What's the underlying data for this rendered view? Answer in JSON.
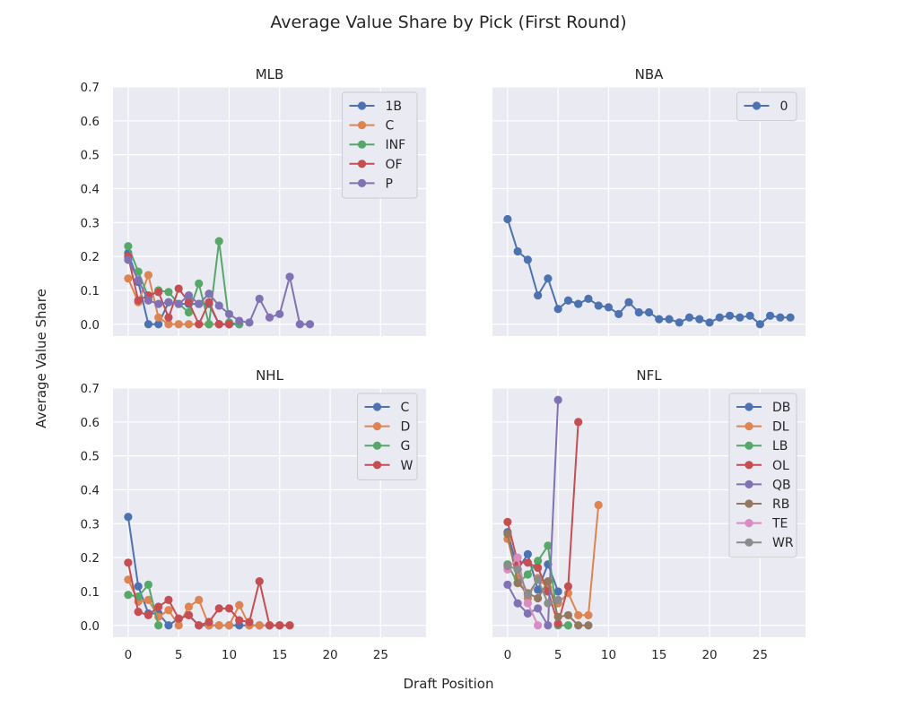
{
  "figure": {
    "title": "Average Value Share by Pick (First Round)",
    "xlabel": "Draft Position",
    "ylabel": "Average Value Share"
  },
  "palette": [
    "#4c72b0",
    "#dd8452",
    "#55a868",
    "#c44e52",
    "#8172b3",
    "#937860",
    "#da8bc3",
    "#8c8c8c"
  ],
  "chart_data": [
    {
      "type": "line",
      "title": "MLB",
      "xlim": [
        -1.5,
        29.5
      ],
      "ylim": [
        -0.035,
        0.7
      ],
      "xticks": [
        "0",
        "5",
        "10",
        "15",
        "20",
        "25"
      ],
      "yticks": [
        "0.0",
        "0.1",
        "0.2",
        "0.3",
        "0.4",
        "0.5",
        "0.6",
        "0.7"
      ],
      "grid": true,
      "legend": "top-right",
      "series": [
        {
          "name": "1B",
          "x": [
            0,
            1,
            2,
            3,
            4,
            5,
            6,
            7,
            8,
            9,
            10,
            11
          ],
          "y": [
            0.21,
            0.125,
            0.0,
            0.0,
            0.065,
            0.06,
            0.06,
            0.06,
            0.06,
            0.0,
            0.0,
            0.0
          ]
        },
        {
          "name": "C",
          "x": [
            0,
            1,
            2,
            3,
            4,
            5,
            6,
            7,
            8,
            9,
            10
          ],
          "y": [
            0.135,
            0.065,
            0.145,
            0.02,
            0.0,
            0.0,
            0.0,
            0.0,
            0.0,
            0.0,
            0.0
          ]
        },
        {
          "name": "INF",
          "x": [
            0,
            1,
            2,
            3,
            4,
            5,
            6,
            7,
            8,
            9,
            10,
            11
          ],
          "y": [
            0.23,
            0.155,
            0.08,
            0.1,
            0.095,
            0.06,
            0.035,
            0.12,
            0.0,
            0.245,
            0.005,
            0.0
          ]
        },
        {
          "name": "OF",
          "x": [
            0,
            1,
            2,
            3,
            4,
            5,
            6,
            7,
            8,
            9,
            10
          ],
          "y": [
            0.2,
            0.07,
            0.085,
            0.095,
            0.02,
            0.105,
            0.065,
            0.0,
            0.065,
            0.0,
            0.0
          ]
        },
        {
          "name": "P",
          "x": [
            0,
            1,
            2,
            3,
            4,
            5,
            6,
            7,
            8,
            9,
            10,
            11,
            12,
            13,
            14,
            15,
            16,
            17,
            18
          ],
          "y": [
            0.19,
            0.13,
            0.07,
            0.06,
            0.065,
            0.06,
            0.085,
            0.06,
            0.09,
            0.055,
            0.03,
            0.01,
            0.005,
            0.075,
            0.02,
            0.03,
            0.14,
            0.0,
            0.0
          ]
        }
      ]
    },
    {
      "type": "line",
      "title": "NBA",
      "xlim": [
        -1.5,
        29.5
      ],
      "ylim": [
        -0.035,
        0.7
      ],
      "xticks": [
        "0",
        "5",
        "10",
        "15",
        "20",
        "25"
      ],
      "yticks": [
        "0.0",
        "0.1",
        "0.2",
        "0.3",
        "0.4",
        "0.5",
        "0.6",
        "0.7"
      ],
      "grid": true,
      "legend": "top-right",
      "series": [
        {
          "name": "0",
          "x": [
            0,
            1,
            2,
            3,
            4,
            5,
            6,
            7,
            8,
            9,
            10,
            11,
            12,
            13,
            14,
            15,
            16,
            17,
            18,
            19,
            20,
            21,
            22,
            23,
            24,
            25,
            26,
            27,
            28
          ],
          "y": [
            0.31,
            0.215,
            0.19,
            0.085,
            0.135,
            0.045,
            0.07,
            0.06,
            0.075,
            0.055,
            0.05,
            0.03,
            0.065,
            0.035,
            0.035,
            0.015,
            0.015,
            0.005,
            0.02,
            0.015,
            0.005,
            0.02,
            0.025,
            0.02,
            0.025,
            0.0,
            0.025,
            0.02,
            0.02
          ]
        }
      ]
    },
    {
      "type": "line",
      "title": "NHL",
      "xlim": [
        -1.5,
        29.5
      ],
      "ylim": [
        -0.035,
        0.7
      ],
      "xticks": [
        "0",
        "5",
        "10",
        "15",
        "20",
        "25"
      ],
      "yticks": [
        "0.0",
        "0.1",
        "0.2",
        "0.3",
        "0.4",
        "0.5",
        "0.6",
        "0.7"
      ],
      "grid": true,
      "legend": "top-right",
      "series": [
        {
          "name": "C",
          "x": [
            0,
            1,
            2,
            3,
            4,
            5,
            6,
            7,
            8,
            9,
            10,
            11,
            12,
            13,
            14,
            15
          ],
          "y": [
            0.32,
            0.115,
            0.035,
            0.035,
            0.0,
            0.02,
            0.03,
            0.0,
            0.0,
            0.0,
            0.0,
            0.0,
            0.0,
            0.0,
            0.0,
            0.0
          ]
        },
        {
          "name": "D",
          "x": [
            0,
            1,
            2,
            3,
            4,
            5,
            6,
            7,
            8,
            9,
            10,
            11,
            12,
            13,
            14,
            15,
            16
          ],
          "y": [
            0.135,
            0.07,
            0.075,
            0.025,
            0.045,
            0.0,
            0.055,
            0.075,
            0.0,
            0.0,
            0.0,
            0.06,
            0.0,
            0.0,
            0.0,
            0.0,
            0.0
          ]
        },
        {
          "name": "G",
          "x": [
            0,
            1,
            2,
            3
          ],
          "y": [
            0.09,
            0.085,
            0.12,
            0.0
          ]
        },
        {
          "name": "W",
          "x": [
            0,
            1,
            2,
            3,
            4,
            5,
            6,
            7,
            8,
            9,
            10,
            11,
            12,
            13,
            14,
            15,
            16
          ],
          "y": [
            0.185,
            0.04,
            0.03,
            0.055,
            0.075,
            0.02,
            0.03,
            0.0,
            0.01,
            0.05,
            0.05,
            0.015,
            0.01,
            0.13,
            0.0,
            0.0,
            0.0
          ]
        }
      ]
    },
    {
      "type": "line",
      "title": "NFL",
      "xlim": [
        -1.5,
        29.5
      ],
      "ylim": [
        -0.035,
        0.7
      ],
      "xticks": [
        "0",
        "5",
        "10",
        "15",
        "20",
        "25"
      ],
      "yticks": [
        "0.0",
        "0.1",
        "0.2",
        "0.3",
        "0.4",
        "0.5",
        "0.6",
        "0.7"
      ],
      "grid": true,
      "legend": "top-right",
      "series": [
        {
          "name": "DB",
          "x": [
            0,
            1,
            2,
            3,
            4,
            5
          ],
          "y": [
            0.275,
            0.165,
            0.21,
            0.105,
            0.18,
            0.1
          ]
        },
        {
          "name": "DL",
          "x": [
            0,
            1,
            2,
            3,
            4,
            5,
            6,
            7,
            8,
            9
          ],
          "y": [
            0.255,
            0.14,
            0.08,
            0.14,
            0.11,
            0.065,
            0.095,
            0.03,
            0.03,
            0.355
          ]
        },
        {
          "name": "LB",
          "x": [
            0,
            1,
            2,
            3,
            4,
            5,
            6
          ],
          "y": [
            0.18,
            0.125,
            0.15,
            0.19,
            0.235,
            0.0,
            0.0
          ]
        },
        {
          "name": "OL",
          "x": [
            0,
            1,
            2,
            3,
            4,
            5,
            6,
            7
          ],
          "y": [
            0.305,
            0.185,
            0.185,
            0.17,
            0.1,
            0.005,
            0.115,
            0.6
          ]
        },
        {
          "name": "QB",
          "x": [
            0,
            1,
            2,
            3,
            4,
            5
          ],
          "y": [
            0.12,
            0.065,
            0.035,
            0.05,
            0.0,
            0.665
          ]
        },
        {
          "name": "RB",
          "x": [
            0,
            1,
            2,
            3,
            4,
            5,
            6,
            7,
            8
          ],
          "y": [
            0.27,
            0.125,
            0.095,
            0.08,
            0.13,
            0.025,
            0.03,
            0.0,
            0.0
          ]
        },
        {
          "name": "TE",
          "x": [
            0,
            1,
            2,
            3
          ],
          "y": [
            0.165,
            0.2,
            0.065,
            0.0
          ]
        },
        {
          "name": "WR",
          "x": [
            0,
            1,
            2,
            3,
            4,
            5
          ],
          "y": [
            0.175,
            0.165,
            0.09,
            0.135,
            0.065,
            0.075
          ]
        }
      ]
    }
  ]
}
